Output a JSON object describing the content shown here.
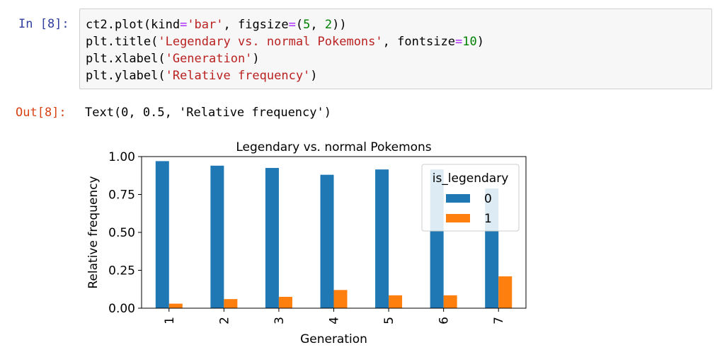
{
  "cell": {
    "in_prompt": "In [8]:",
    "out_prompt": "Out[8]:",
    "code_lines": [
      [
        {
          "t": "ct2.plot(kind",
          "c": "kw"
        },
        {
          "t": "=",
          "c": "op"
        },
        {
          "t": "'bar'",
          "c": "str"
        },
        {
          "t": ", figsize",
          "c": "kw"
        },
        {
          "t": "=",
          "c": "op"
        },
        {
          "t": "(",
          "c": "kw"
        },
        {
          "t": "5",
          "c": "num"
        },
        {
          "t": ", ",
          "c": "kw"
        },
        {
          "t": "2",
          "c": "num"
        },
        {
          "t": "))",
          "c": "kw"
        }
      ],
      [
        {
          "t": "plt.title(",
          "c": "kw"
        },
        {
          "t": "'Legendary vs. normal Pokemons'",
          "c": "str"
        },
        {
          "t": ", fontsize",
          "c": "kw"
        },
        {
          "t": "=",
          "c": "op"
        },
        {
          "t": "10",
          "c": "num"
        },
        {
          "t": ")",
          "c": "kw"
        }
      ],
      [
        {
          "t": "plt.xlabel(",
          "c": "kw"
        },
        {
          "t": "'Generation'",
          "c": "str"
        },
        {
          "t": ")",
          "c": "kw"
        }
      ],
      [
        {
          "t": "plt.ylabel(",
          "c": "kw"
        },
        {
          "t": "'Relative frequency'",
          "c": "str"
        },
        {
          "t": ")",
          "c": "kw"
        }
      ]
    ],
    "output_text": "Text(0, 0.5, 'Relative frequency')"
  },
  "colors": {
    "series0": "#1f77b4",
    "series1": "#ff7f0e"
  },
  "chart_data": {
    "type": "bar",
    "title": "Legendary vs. normal Pokemons",
    "xlabel": "Generation",
    "ylabel": "Relative frequency",
    "categories": [
      "1",
      "2",
      "3",
      "4",
      "5",
      "6",
      "7"
    ],
    "series": [
      {
        "name": "0",
        "values": [
          0.97,
          0.94,
          0.925,
          0.88,
          0.915,
          0.915,
          0.79
        ]
      },
      {
        "name": "1",
        "values": [
          0.03,
          0.06,
          0.075,
          0.12,
          0.085,
          0.085,
          0.21
        ]
      }
    ],
    "ylim": [
      0,
      1.0
    ],
    "yticks": [
      0.0,
      0.25,
      0.5,
      0.75,
      1.0
    ],
    "ytick_labels": [
      "0.00",
      "0.25",
      "0.50",
      "0.75",
      "1.00"
    ],
    "legend_title": "is_legendary",
    "legend_position": "top-right",
    "grid": false
  }
}
